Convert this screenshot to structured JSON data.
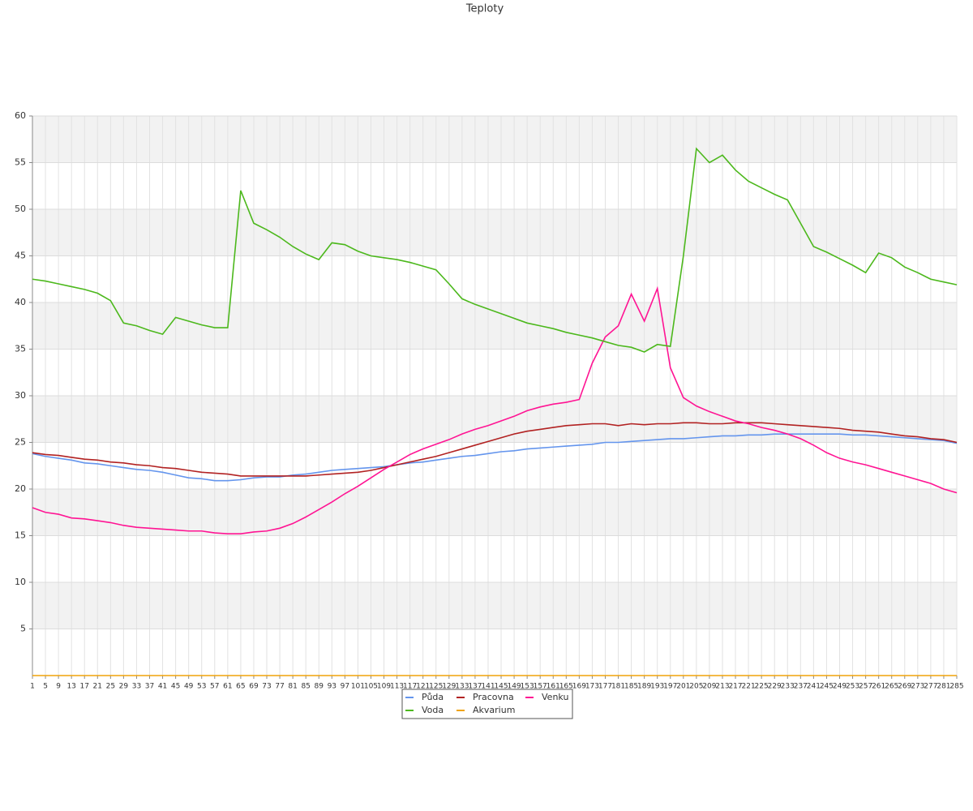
{
  "chart_data": {
    "type": "line",
    "title": "Teploty",
    "categories": [
      "1",
      "5",
      "9",
      "13",
      "17",
      "21",
      "25",
      "29",
      "33",
      "37",
      "41",
      "45",
      "49",
      "53",
      "57",
      "61",
      "65",
      "69",
      "73",
      "77",
      "81",
      "85",
      "89",
      "93",
      "97",
      "101",
      "105",
      "109",
      "113",
      "117",
      "121",
      "125",
      "129",
      "133",
      "137",
      "141",
      "145",
      "149",
      "153",
      "157",
      "161",
      "165",
      "169",
      "173",
      "177",
      "181",
      "185",
      "189",
      "193",
      "197",
      "201",
      "205",
      "209",
      "213",
      "217",
      "221",
      "225",
      "229",
      "233",
      "237",
      "241",
      "245",
      "249",
      "253",
      "257",
      "261",
      "265",
      "269",
      "273",
      "277",
      "281",
      "285"
    ],
    "series": [
      {
        "name": "Půda",
        "color": "#6495ed",
        "values": [
          23.8,
          23.5,
          23.3,
          23.1,
          22.8,
          22.7,
          22.5,
          22.3,
          22.1,
          22.0,
          21.8,
          21.5,
          21.2,
          21.1,
          20.9,
          20.9,
          21.0,
          21.2,
          21.3,
          21.3,
          21.5,
          21.6,
          21.8,
          22.0,
          22.1,
          22.2,
          22.3,
          22.4,
          22.6,
          22.8,
          22.9,
          23.1,
          23.3,
          23.5,
          23.6,
          23.8,
          24.0,
          24.1,
          24.3,
          24.4,
          24.5,
          24.6,
          24.7,
          24.8,
          25.0,
          25.0,
          25.1,
          25.2,
          25.3,
          25.4,
          25.4,
          25.5,
          25.6,
          25.7,
          25.7,
          25.8,
          25.8,
          25.9,
          25.9,
          25.9,
          25.9,
          25.9,
          25.9,
          25.8,
          25.8,
          25.7,
          25.6,
          25.5,
          25.4,
          25.3,
          25.2,
          24.9
        ]
      },
      {
        "name": "Pracovna",
        "color": "#b22222",
        "values": [
          23.9,
          23.7,
          23.6,
          23.4,
          23.2,
          23.1,
          22.9,
          22.8,
          22.6,
          22.5,
          22.3,
          22.2,
          22.0,
          21.8,
          21.7,
          21.6,
          21.4,
          21.4,
          21.4,
          21.4,
          21.4,
          21.4,
          21.5,
          21.6,
          21.7,
          21.8,
          22.0,
          22.3,
          22.6,
          22.9,
          23.2,
          23.5,
          23.9,
          24.3,
          24.7,
          25.1,
          25.5,
          25.9,
          26.2,
          26.4,
          26.6,
          26.8,
          26.9,
          27.0,
          27.0,
          26.8,
          27.0,
          26.9,
          27.0,
          27.0,
          27.1,
          27.1,
          27.0,
          27.0,
          27.1,
          27.1,
          27.1,
          27.0,
          26.9,
          26.8,
          26.7,
          26.6,
          26.5,
          26.3,
          26.2,
          26.1,
          25.9,
          25.7,
          25.6,
          25.4,
          25.3,
          25.0
        ]
      },
      {
        "name": "Venku",
        "color": "#ff1493",
        "values": [
          18.0,
          17.5,
          17.3,
          16.9,
          16.8,
          16.6,
          16.4,
          16.1,
          15.9,
          15.8,
          15.7,
          15.6,
          15.5,
          15.5,
          15.3,
          15.2,
          15.2,
          15.4,
          15.5,
          15.8,
          16.3,
          17.0,
          17.8,
          18.6,
          19.5,
          20.3,
          21.2,
          22.1,
          22.9,
          23.7,
          24.3,
          24.8,
          25.3,
          25.9,
          26.4,
          26.8,
          27.3,
          27.8,
          28.4,
          28.8,
          29.1,
          29.3,
          29.6,
          33.5,
          36.3,
          37.5,
          40.9,
          38.0,
          41.5,
          33.0,
          29.8,
          28.9,
          28.3,
          27.8,
          27.3,
          27.0,
          26.6,
          26.3,
          25.9,
          25.4,
          24.7,
          23.9,
          23.3,
          22.9,
          22.6,
          22.2,
          21.8,
          21.4,
          21.0,
          20.6,
          20.0,
          19.6
        ]
      },
      {
        "name": "Voda",
        "color": "#4cb81c",
        "values": [
          42.5,
          42.3,
          42.0,
          41.7,
          41.4,
          41.0,
          40.2,
          37.8,
          37.5,
          37.0,
          36.6,
          38.4,
          38.0,
          37.6,
          37.3,
          37.3,
          52.0,
          48.5,
          47.8,
          47.0,
          46.0,
          45.2,
          44.6,
          46.4,
          46.2,
          45.5,
          45.0,
          44.8,
          44.6,
          44.3,
          43.9,
          43.5,
          42.0,
          40.4,
          39.8,
          39.3,
          38.8,
          38.3,
          37.8,
          37.5,
          37.2,
          36.8,
          36.5,
          36.2,
          35.8,
          35.4,
          35.2,
          34.7,
          35.5,
          35.3,
          45.0,
          56.5,
          55.0,
          55.8,
          54.2,
          53.0,
          52.3,
          51.6,
          51.0,
          48.5,
          46.0,
          45.4,
          44.7,
          44.0,
          43.2,
          45.3,
          44.8,
          43.8,
          43.2,
          42.5,
          42.2,
          41.9
        ]
      },
      {
        "name": "Akvarium",
        "color": "#f0a30a",
        "values": [
          0,
          0,
          0,
          0,
          0,
          0,
          0,
          0,
          0,
          0,
          0,
          0,
          0,
          0,
          0,
          0,
          0,
          0,
          0,
          0,
          0,
          0,
          0,
          0,
          0,
          0,
          0,
          0,
          0,
          0,
          0,
          0,
          0,
          0,
          0,
          0,
          0,
          0,
          0,
          0,
          0,
          0,
          0,
          0,
          0,
          0,
          0,
          0,
          0,
          0,
          0,
          0,
          0,
          0,
          0,
          0,
          0,
          0,
          0,
          0,
          0,
          0,
          0,
          0,
          0,
          0,
          0,
          0,
          0,
          0,
          0,
          0
        ]
      }
    ],
    "ylim": [
      0,
      60
    ],
    "yticks": [
      5,
      10,
      15,
      20,
      25,
      30,
      35,
      40,
      45,
      50,
      55,
      60
    ],
    "grid": true,
    "band_color": "#f2f2f2",
    "legend": "bottom"
  }
}
